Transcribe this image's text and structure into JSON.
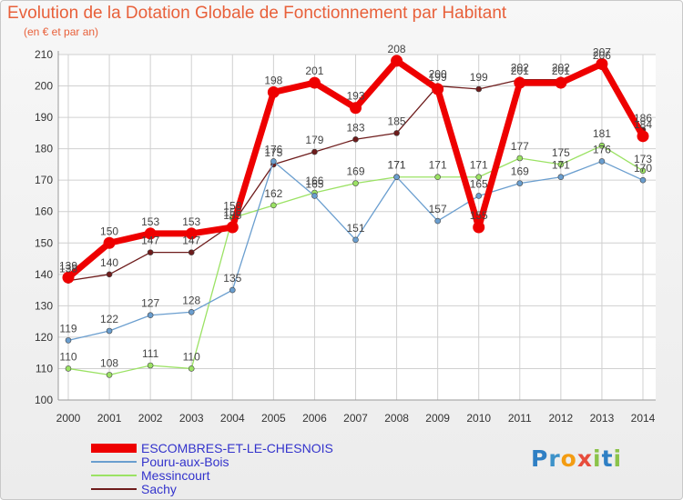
{
  "chart_data": {
    "type": "line",
    "title": "Evolution de la Dotation Globale de Fonctionnement par Habitant",
    "subtitle": "(en € et par an)",
    "xlabel": "",
    "ylabel": "",
    "categories": [
      "2000",
      "2001",
      "2002",
      "2003",
      "2004",
      "2005",
      "2006",
      "2007",
      "2008",
      "2009",
      "2010",
      "2011",
      "2012",
      "2013",
      "2014"
    ],
    "ylim": [
      100,
      210
    ],
    "yticks": [
      100,
      110,
      120,
      130,
      140,
      150,
      160,
      170,
      180,
      190,
      200,
      210
    ],
    "grid": true,
    "legend": "bottom",
    "series": [
      {
        "name": "Sachy",
        "color": "#6e1c1c",
        "values": [
          138,
          140,
          147,
          147,
          156,
          175,
          179,
          183,
          185,
          200,
          199,
          202,
          202,
          206,
          186
        ]
      },
      {
        "name": "Messincourt",
        "color": "#9be264",
        "values": [
          110,
          108,
          111,
          110,
          158,
          162,
          166,
          169,
          171,
          171,
          171,
          177,
          175,
          181,
          173
        ]
      },
      {
        "name": "Pouru-aux-Bois",
        "color": "#6a9ecf",
        "values": [
          119,
          122,
          127,
          128,
          135,
          176,
          165,
          151,
          171,
          157,
          165,
          169,
          171,
          176,
          170
        ]
      },
      {
        "name": "ESCOMBRES-ET-LE-CHESNOIS",
        "color": "#ee0000",
        "values": [
          139,
          150,
          153,
          153,
          155,
          198,
          201,
          193,
          208,
          199,
          155,
          201,
          201,
          207,
          184
        ]
      }
    ]
  },
  "legend_items": [
    {
      "label": "ESCOMBRES-ET-LE-CHESNOIS",
      "color": "#ee0000"
    },
    {
      "label": "Pouru-aux-Bois",
      "color": "#6a9ecf"
    },
    {
      "label": "Messincourt",
      "color": "#9be264"
    },
    {
      "label": "Sachy",
      "color": "#6e1c1c"
    }
  ],
  "logo": {
    "letters": [
      "P",
      "r",
      "o",
      "x",
      "i",
      "t",
      "i"
    ],
    "colors": [
      "#2f7fc4",
      "#3d92c9",
      "#f39c12",
      "#e74c3c",
      "#8bc34a",
      "#2f7fc4",
      "#8bc34a"
    ]
  }
}
